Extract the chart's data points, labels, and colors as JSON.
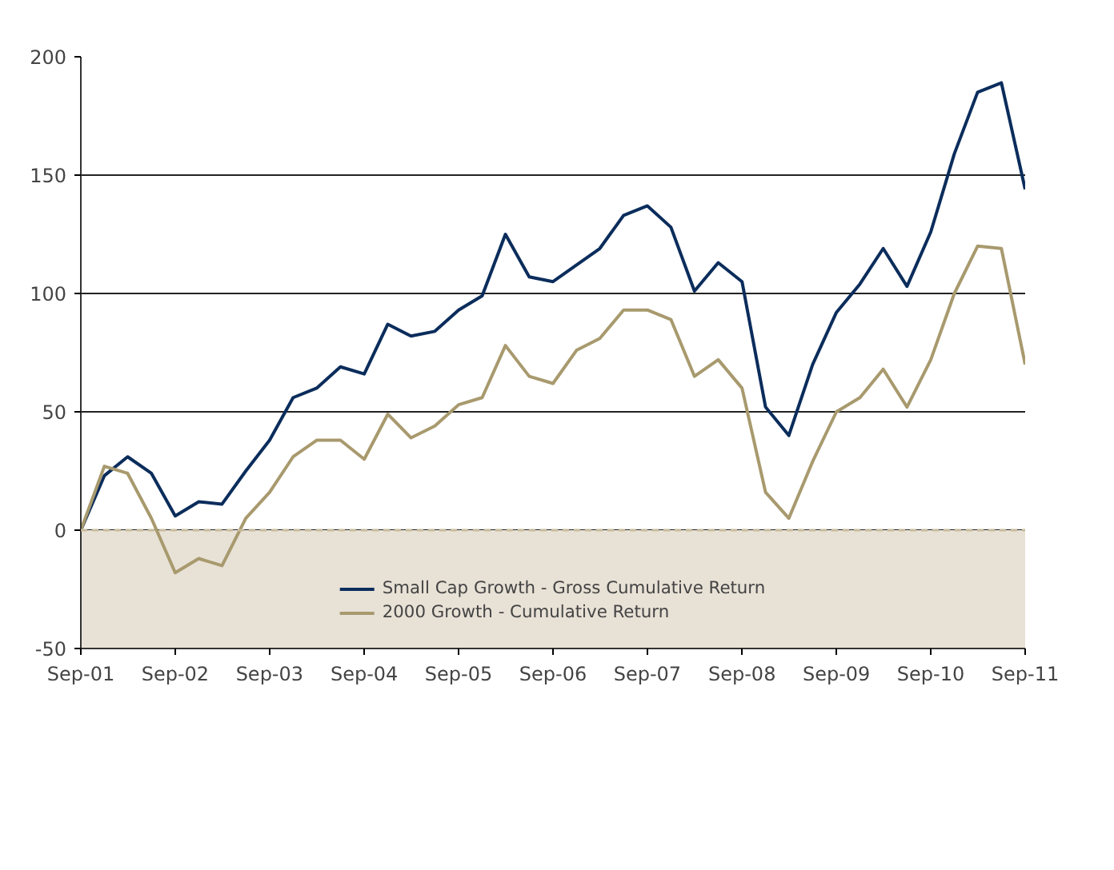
{
  "chart_data": {
    "type": "line",
    "x": [
      "2001-09",
      "2001-12",
      "2002-03",
      "2002-06",
      "2002-09",
      "2002-12",
      "2003-03",
      "2003-06",
      "2003-09",
      "2003-12",
      "2004-03",
      "2004-06",
      "2004-09",
      "2004-12",
      "2005-03",
      "2005-06",
      "2005-09",
      "2005-12",
      "2006-03",
      "2006-06",
      "2006-09",
      "2006-12",
      "2007-03",
      "2007-06",
      "2007-09",
      "2007-12",
      "2008-03",
      "2008-06",
      "2008-09",
      "2008-12",
      "2009-03",
      "2009-06",
      "2009-09",
      "2009-12",
      "2010-03",
      "2010-06",
      "2010-09",
      "2010-12",
      "2011-03",
      "2011-06",
      "2011-09"
    ],
    "series": [
      {
        "name": "Small Cap Growth - Gross Cumulative Return",
        "color": "#0b2d5c",
        "values": [
          0,
          23,
          31,
          24,
          6,
          12,
          11,
          25,
          38,
          56,
          60,
          69,
          66,
          87,
          82,
          84,
          93,
          99,
          125,
          107,
          105,
          112,
          119,
          133,
          137,
          128,
          101,
          113,
          105,
          52,
          40,
          70,
          92,
          104,
          119,
          103,
          126,
          159,
          185,
          189,
          144
        ]
      },
      {
        "name": "2000 Growth - Cumulative Return",
        "color": "#a89a6e",
        "values": [
          0,
          27,
          24,
          5,
          -18,
          -12,
          -15,
          5,
          16,
          31,
          38,
          38,
          30,
          49,
          39,
          44,
          53,
          56,
          78,
          65,
          62,
          76,
          81,
          93,
          93,
          89,
          65,
          72,
          60,
          16,
          5,
          29,
          50,
          56,
          68,
          52,
          72,
          100,
          120,
          119,
          70
        ]
      }
    ],
    "xlim": [
      "2001-09",
      "2011-09"
    ],
    "xticks": [
      {
        "value": "2001-09",
        "label": "Sep-01"
      },
      {
        "value": "2002-09",
        "label": "Sep-02"
      },
      {
        "value": "2003-09",
        "label": "Sep-03"
      },
      {
        "value": "2004-09",
        "label": "Sep-04"
      },
      {
        "value": "2005-09",
        "label": "Sep-05"
      },
      {
        "value": "2006-09",
        "label": "Sep-06"
      },
      {
        "value": "2007-09",
        "label": "Sep-07"
      },
      {
        "value": "2008-09",
        "label": "Sep-08"
      },
      {
        "value": "2009-09",
        "label": "Sep-09"
      },
      {
        "value": "2010-09",
        "label": "Sep-10"
      },
      {
        "value": "2011-09",
        "label": "Sep-11"
      }
    ],
    "ylim": [
      -50,
      200
    ],
    "yticks": [
      -50,
      0,
      50,
      100,
      150,
      200
    ],
    "grid": "y",
    "ref_lines": [
      {
        "axis": "y",
        "value": 0,
        "label": null,
        "color": "#c8bc9c",
        "line_style": "dashed"
      }
    ],
    "bands": [
      {
        "axis": "y",
        "from": -50,
        "to": 0,
        "label": null,
        "color": "#e8e1d6"
      }
    ],
    "legend": "bottom",
    "marker": "none",
    "line_style": "solid"
  }
}
